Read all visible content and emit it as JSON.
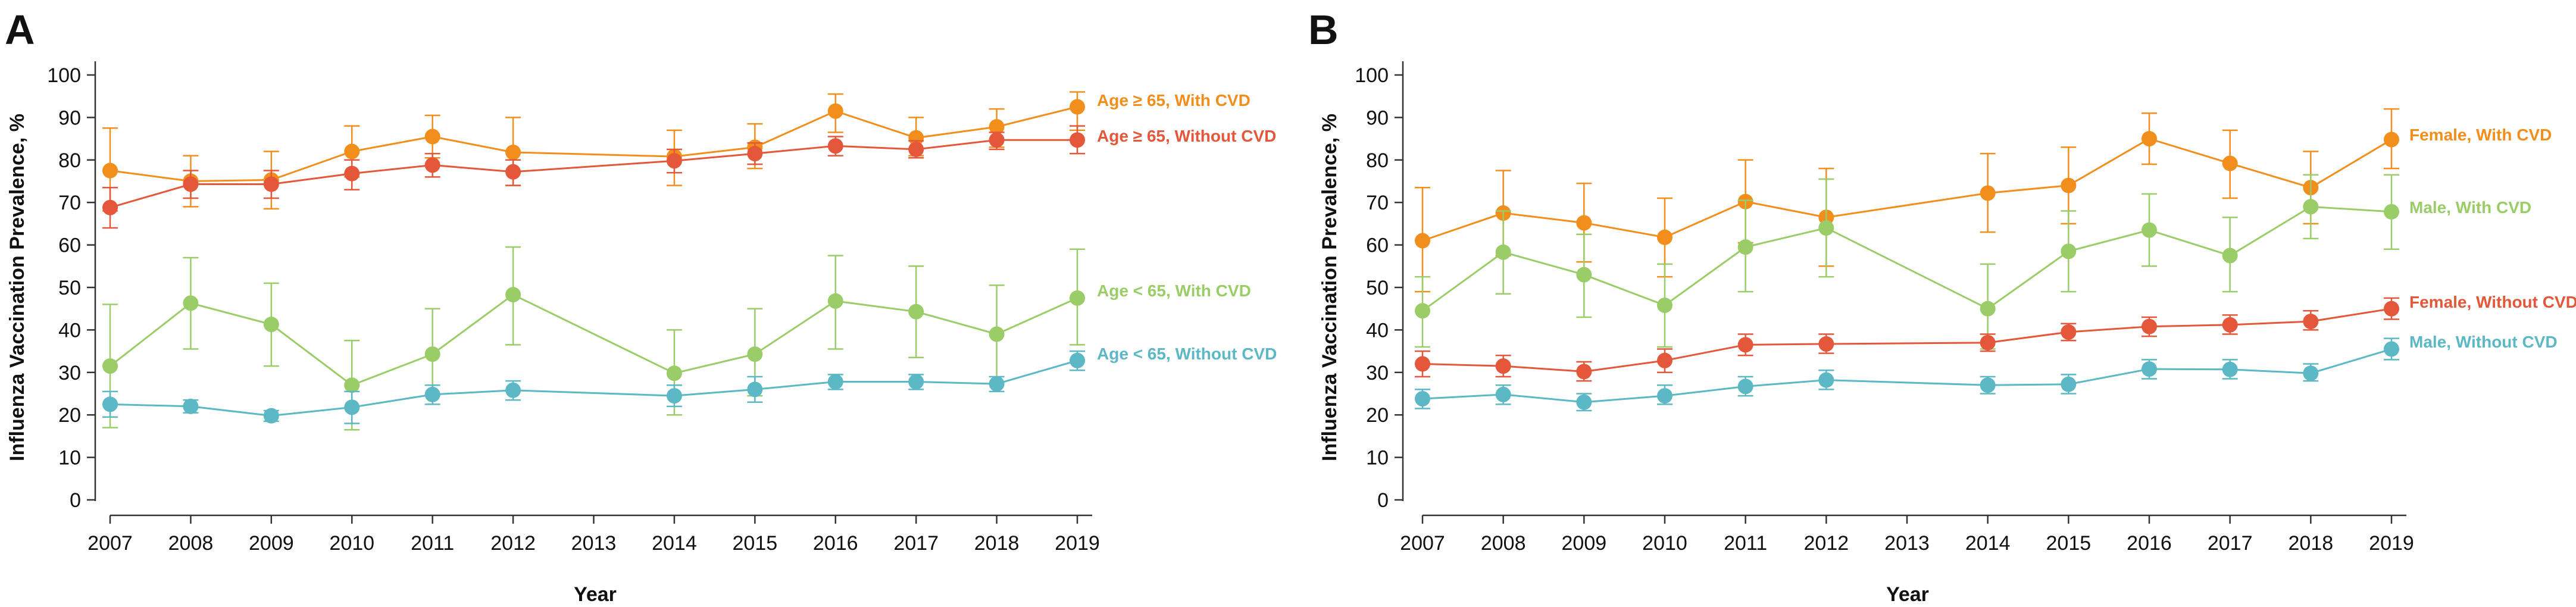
{
  "chart_data": [
    {
      "panel_label": "A",
      "type": "line",
      "xlabel": "Year",
      "ylabel": "Influenza Vaccination Prevalence, %",
      "ylim": [
        0,
        100
      ],
      "yticks": [
        0,
        10,
        20,
        30,
        40,
        50,
        60,
        70,
        80,
        90,
        100
      ],
      "xticks": [
        "2007",
        "2008",
        "2009",
        "2010",
        "2011",
        "2012",
        "2013",
        "2014",
        "2015",
        "2016",
        "2017",
        "2018",
        "2019"
      ],
      "grid": false,
      "legend": "inline labels at right end of each series",
      "series": [
        {
          "name": "Age ≥ 65, With CVD",
          "color": "#F28E1C",
          "x": [
            2007,
            2008,
            2009,
            2010,
            2011,
            2012,
            2014,
            2015,
            2016,
            2017,
            2018,
            2019
          ],
          "values": [
            77.5,
            75.0,
            75.3,
            82.0,
            85.5,
            81.8,
            80.8,
            83.0,
            91.5,
            85.2,
            87.8,
            92.5
          ],
          "lower": [
            68.0,
            69.0,
            68.5,
            76.0,
            80.5,
            74.0,
            74.0,
            78.0,
            86.5,
            81.0,
            83.0,
            87.0
          ],
          "upper": [
            87.5,
            81.0,
            82.0,
            88.0,
            90.5,
            90.0,
            87.0,
            88.5,
            95.5,
            90.0,
            92.0,
            96.0
          ]
        },
        {
          "name": "Age ≥ 65, Without CVD",
          "color": "#E4573A",
          "x": [
            2007,
            2008,
            2009,
            2010,
            2011,
            2012,
            2014,
            2015,
            2016,
            2017,
            2018,
            2019
          ],
          "values": [
            68.8,
            74.3,
            74.3,
            76.8,
            78.8,
            77.2,
            79.8,
            81.5,
            83.3,
            82.5,
            84.7,
            84.7
          ],
          "lower": [
            64.0,
            71.0,
            71.0,
            73.0,
            76.0,
            74.0,
            77.0,
            79.0,
            81.0,
            80.5,
            82.5,
            81.5
          ],
          "upper": [
            73.5,
            77.5,
            77.5,
            80.0,
            81.5,
            80.0,
            82.5,
            84.0,
            85.5,
            84.5,
            86.5,
            88.0
          ]
        },
        {
          "name": "Age < 65, With CVD",
          "color": "#9ACD68",
          "x": [
            2007,
            2008,
            2009,
            2010,
            2011,
            2012,
            2014,
            2015,
            2016,
            2017,
            2018,
            2019
          ],
          "values": [
            31.5,
            46.3,
            41.3,
            27.0,
            34.3,
            48.3,
            29.8,
            34.3,
            46.8,
            44.3,
            39.0,
            47.5
          ],
          "lower": [
            17.0,
            35.5,
            31.5,
            16.5,
            24.5,
            36.5,
            20.0,
            24.5,
            35.5,
            33.5,
            27.5,
            36.5
          ],
          "upper": [
            46.0,
            57.0,
            51.0,
            37.5,
            45.0,
            59.5,
            40.0,
            45.0,
            57.5,
            55.0,
            50.5,
            59.0
          ]
        },
        {
          "name": "Age < 65, Without CVD",
          "color": "#5BB8C4",
          "x": [
            2007,
            2008,
            2009,
            2010,
            2011,
            2012,
            2014,
            2015,
            2016,
            2017,
            2018,
            2019
          ],
          "values": [
            22.5,
            22.0,
            19.8,
            21.8,
            24.8,
            25.8,
            24.5,
            26.0,
            27.8,
            27.8,
            27.3,
            32.8
          ],
          "lower": [
            19.5,
            20.5,
            18.5,
            18.0,
            22.5,
            23.5,
            22.0,
            23.0,
            26.0,
            26.0,
            25.5,
            30.5
          ],
          "upper": [
            25.5,
            23.5,
            21.0,
            25.5,
            27.0,
            28.0,
            27.0,
            29.0,
            29.5,
            29.5,
            29.0,
            35.0
          ]
        }
      ]
    },
    {
      "panel_label": "B",
      "type": "line",
      "xlabel": "Year",
      "ylabel": "Influenza Vaccination Prevalence, %",
      "ylim": [
        0,
        100
      ],
      "yticks": [
        0,
        10,
        20,
        30,
        40,
        50,
        60,
        70,
        80,
        90,
        100
      ],
      "xticks": [
        "2007",
        "2008",
        "2009",
        "2010",
        "2011",
        "2012",
        "2013",
        "2014",
        "2015",
        "2016",
        "2017",
        "2018",
        "2019"
      ],
      "grid": false,
      "legend": "inline labels at right end of each series",
      "series": [
        {
          "name": "Female, With CVD",
          "color": "#F28E1C",
          "x": [
            2007,
            2008,
            2009,
            2010,
            2011,
            2012,
            2014,
            2015,
            2016,
            2017,
            2018,
            2019
          ],
          "values": [
            61.0,
            67.5,
            65.2,
            61.8,
            70.2,
            66.5,
            72.2,
            74.0,
            85.0,
            79.2,
            73.5,
            84.8
          ],
          "lower": [
            49.0,
            57.5,
            56.0,
            52.5,
            60.5,
            55.0,
            63.0,
            65.0,
            79.0,
            71.0,
            65.0,
            78.0
          ],
          "upper": [
            73.5,
            77.5,
            74.5,
            71.0,
            80.0,
            78.0,
            81.5,
            83.0,
            91.0,
            87.0,
            82.0,
            92.0
          ]
        },
        {
          "name": "Male, With CVD",
          "color": "#9ACD68",
          "x": [
            2007,
            2008,
            2009,
            2010,
            2011,
            2012,
            2014,
            2015,
            2016,
            2017,
            2018,
            2019
          ],
          "values": [
            44.5,
            58.3,
            53.0,
            45.8,
            59.5,
            64.0,
            45.0,
            58.5,
            63.5,
            57.5,
            69.0,
            67.8
          ],
          "lower": [
            36.0,
            48.5,
            43.0,
            36.0,
            49.0,
            52.5,
            35.5,
            49.0,
            55.0,
            49.0,
            61.5,
            59.0
          ],
          "upper": [
            52.5,
            68.0,
            62.5,
            55.5,
            70.5,
            75.5,
            55.5,
            68.0,
            72.0,
            66.5,
            76.5,
            76.5
          ]
        },
        {
          "name": "Female, Without CVD",
          "color": "#E4573A",
          "x": [
            2007,
            2008,
            2009,
            2010,
            2011,
            2012,
            2014,
            2015,
            2016,
            2017,
            2018,
            2019
          ],
          "values": [
            32.0,
            31.5,
            30.2,
            32.8,
            36.5,
            36.7,
            37.0,
            39.5,
            40.8,
            41.2,
            42.0,
            45.0
          ],
          "lower": [
            29.0,
            29.0,
            28.0,
            30.0,
            34.0,
            34.5,
            35.0,
            37.5,
            38.5,
            39.0,
            40.0,
            42.5
          ],
          "upper": [
            35.0,
            34.0,
            32.5,
            35.5,
            39.0,
            39.0,
            39.0,
            41.5,
            43.0,
            43.5,
            44.5,
            47.5
          ]
        },
        {
          "name": "Male, Without CVD",
          "color": "#5BB8C4",
          "x": [
            2007,
            2008,
            2009,
            2010,
            2011,
            2012,
            2014,
            2015,
            2016,
            2017,
            2018,
            2019
          ],
          "values": [
            23.8,
            24.8,
            23.0,
            24.5,
            26.7,
            28.2,
            27.0,
            27.2,
            30.8,
            30.7,
            29.8,
            35.5
          ],
          "lower": [
            21.5,
            22.5,
            21.0,
            22.5,
            24.5,
            26.0,
            25.0,
            25.0,
            28.5,
            28.5,
            28.0,
            33.0
          ],
          "upper": [
            26.0,
            27.0,
            25.0,
            27.0,
            29.0,
            30.5,
            29.0,
            29.5,
            33.0,
            33.0,
            32.0,
            38.0
          ]
        }
      ]
    }
  ]
}
